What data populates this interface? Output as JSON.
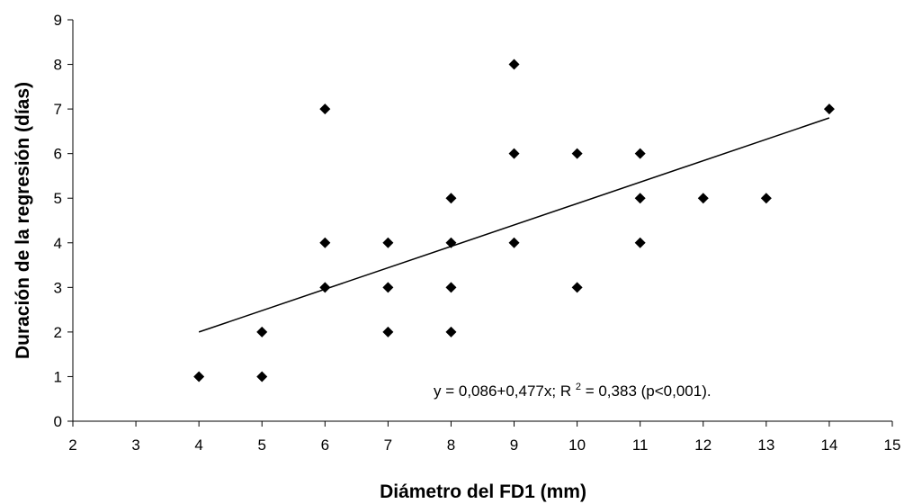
{
  "chart_data": {
    "type": "scatter",
    "title": "",
    "xlabel": "Diámetro del FD1 (mm)",
    "ylabel": "Duración de la regresión (días)",
    "xlim": [
      2,
      15
    ],
    "ylim": [
      0,
      9
    ],
    "x_ticks": [
      2,
      3,
      4,
      5,
      6,
      7,
      8,
      9,
      10,
      11,
      12,
      13,
      14,
      15
    ],
    "y_ticks": [
      0,
      1,
      2,
      3,
      4,
      5,
      6,
      7,
      8,
      9
    ],
    "grid": false,
    "marker": "diamond",
    "marker_color": "#000000",
    "points": [
      {
        "x": 4,
        "y": 1
      },
      {
        "x": 5,
        "y": 1
      },
      {
        "x": 5,
        "y": 2
      },
      {
        "x": 6,
        "y": 3
      },
      {
        "x": 6,
        "y": 4
      },
      {
        "x": 6,
        "y": 7
      },
      {
        "x": 7,
        "y": 2
      },
      {
        "x": 7,
        "y": 3
      },
      {
        "x": 7,
        "y": 4
      },
      {
        "x": 8,
        "y": 2
      },
      {
        "x": 8,
        "y": 3
      },
      {
        "x": 8,
        "y": 4
      },
      {
        "x": 8,
        "y": 5
      },
      {
        "x": 9,
        "y": 4
      },
      {
        "x": 9,
        "y": 6
      },
      {
        "x": 9,
        "y": 8
      },
      {
        "x": 10,
        "y": 3
      },
      {
        "x": 10,
        "y": 6
      },
      {
        "x": 11,
        "y": 4
      },
      {
        "x": 11,
        "y": 5
      },
      {
        "x": 11,
        "y": 6
      },
      {
        "x": 12,
        "y": 5
      },
      {
        "x": 13,
        "y": 5
      },
      {
        "x": 14,
        "y": 7
      }
    ],
    "trendline": {
      "x": [
        4,
        14
      ],
      "y": [
        2.0,
        6.8
      ]
    },
    "annotation": {
      "prefix": "y = 0,086+0,477x; R",
      "superscript": "2",
      "suffix": "= 0,383 (p<0,001)."
    }
  }
}
